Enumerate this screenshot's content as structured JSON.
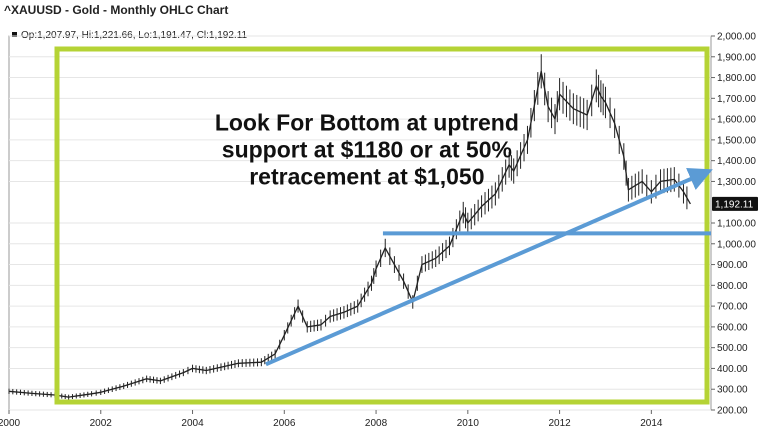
{
  "chart_data": {
    "type": "line",
    "title": "^XAUUSD - Gold - Monthly OHLC Chart",
    "legend": "Op:1,207.97, Hi:1,221.66, Lo:1,191.47, Cl:1,192.11",
    "last_price_label": "1,192.11",
    "xlim": [
      2000,
      2015.3
    ],
    "ylim": [
      200,
      2000
    ],
    "x_ticks": [
      {
        "value": 2000,
        "label": "2000"
      },
      {
        "value": 2002,
        "label": "2002"
      },
      {
        "value": 2004,
        "label": "2004"
      },
      {
        "value": 2006,
        "label": "2006"
      },
      {
        "value": 2008,
        "label": "2008"
      },
      {
        "value": 2010,
        "label": "2010"
      },
      {
        "value": 2012,
        "label": "2012"
      },
      {
        "value": 2014,
        "label": "2014"
      }
    ],
    "y_ticks": [
      {
        "value": 2000,
        "label": "2,000.00"
      },
      {
        "value": 1900,
        "label": "1,900.00"
      },
      {
        "value": 1800,
        "label": "1,800.00"
      },
      {
        "value": 1700,
        "label": "1,700.00"
      },
      {
        "value": 1600,
        "label": "1,600.00"
      },
      {
        "value": 1500,
        "label": "1,500.00"
      },
      {
        "value": 1400,
        "label": "1,400.00"
      },
      {
        "value": 1300,
        "label": "1,300.00"
      },
      {
        "value": 1100,
        "label": "1,100.00"
      },
      {
        "value": 1000,
        "label": "1,000.00"
      },
      {
        "value": 900,
        "label": "900.00"
      },
      {
        "value": 800,
        "label": "800.00"
      },
      {
        "value": 700,
        "label": "700.00"
      },
      {
        "value": 600,
        "label": "600.00"
      },
      {
        "value": 500,
        "label": "500.00"
      },
      {
        "value": 400,
        "label": "400.00"
      },
      {
        "value": 300,
        "label": "300.00"
      },
      {
        "value": 200,
        "label": "200.00"
      }
    ],
    "price_path": [
      [
        2000.0,
        290
      ],
      [
        2000.5,
        280
      ],
      [
        2001.0,
        272
      ],
      [
        2001.3,
        262
      ],
      [
        2001.8,
        278
      ],
      [
        2002.0,
        285
      ],
      [
        2002.5,
        315
      ],
      [
        2003.0,
        350
      ],
      [
        2003.3,
        340
      ],
      [
        2003.8,
        380
      ],
      [
        2004.0,
        400
      ],
      [
        2004.3,
        390
      ],
      [
        2004.7,
        410
      ],
      [
        2005.0,
        425
      ],
      [
        2005.5,
        430
      ],
      [
        2005.8,
        470
      ],
      [
        2006.0,
        560
      ],
      [
        2006.3,
        700
      ],
      [
        2006.5,
        600
      ],
      [
        2006.8,
        610
      ],
      [
        2007.0,
        650
      ],
      [
        2007.3,
        670
      ],
      [
        2007.6,
        700
      ],
      [
        2007.9,
        810
      ],
      [
        2008.0,
        880
      ],
      [
        2008.2,
        980
      ],
      [
        2008.4,
        900
      ],
      [
        2008.6,
        820
      ],
      [
        2008.8,
        720
      ],
      [
        2009.0,
        900
      ],
      [
        2009.3,
        930
      ],
      [
        2009.6,
        990
      ],
      [
        2009.9,
        1150
      ],
      [
        2010.0,
        1100
      ],
      [
        2010.3,
        1180
      ],
      [
        2010.6,
        1240
      ],
      [
        2010.9,
        1380
      ],
      [
        2011.0,
        1350
      ],
      [
        2011.3,
        1500
      ],
      [
        2011.6,
        1830
      ],
      [
        2011.75,
        1660
      ],
      [
        2011.9,
        1600
      ],
      [
        2012.0,
        1720
      ],
      [
        2012.3,
        1650
      ],
      [
        2012.6,
        1620
      ],
      [
        2012.8,
        1760
      ],
      [
        2012.9,
        1710
      ],
      [
        2013.0,
        1680
      ],
      [
        2013.2,
        1580
      ],
      [
        2013.4,
        1420
      ],
      [
        2013.5,
        1260
      ],
      [
        2013.8,
        1300
      ],
      [
        2014.0,
        1250
      ],
      [
        2014.2,
        1300
      ],
      [
        2014.5,
        1310
      ],
      [
        2014.7,
        1250
      ],
      [
        2014.85,
        1192
      ]
    ],
    "annotations": [
      {
        "text": "Look For Bottom at uptrend",
        "x": 2007.8,
        "y": 1545
      },
      {
        "text": "support at $1180 or at 50%",
        "x": 2007.8,
        "y": 1415
      },
      {
        "text": "retracement at $1,050",
        "x": 2007.8,
        "y": 1285
      }
    ],
    "horizontal_line": {
      "value": 1050,
      "x_from": 2008.15,
      "x_to": 2015.3
    },
    "trend_line": {
      "from": [
        2005.6,
        420
      ],
      "to": [
        2015.1,
        1335
      ]
    },
    "colors": {
      "price": "#222222",
      "frame": "#b5d335",
      "trend_lines": "#5b9bd5",
      "badge": "#111111"
    }
  }
}
